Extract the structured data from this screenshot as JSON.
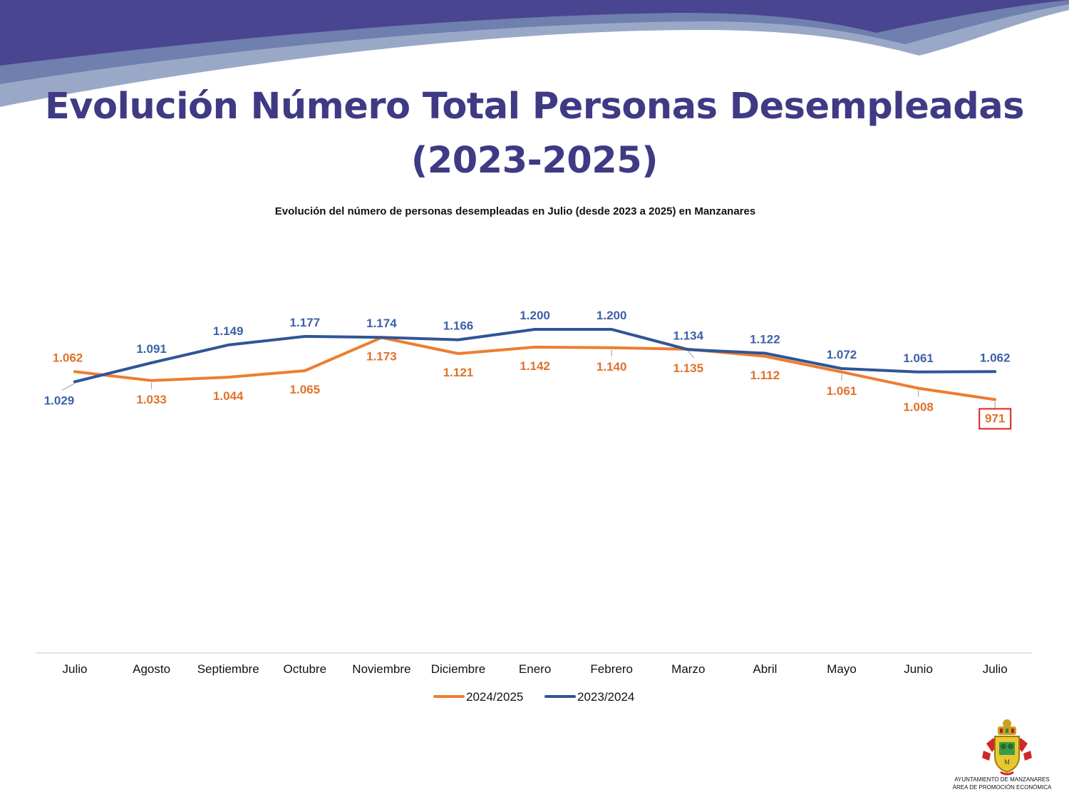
{
  "slide": {
    "title_line1": "Evolución Número Total Personas Desempleadas",
    "title_line2": "(2023-2025)",
    "footer_line1": "AYUNTAMIENTO DE MANZANARES",
    "footer_line2": "ÁREA DE PROMOCIÓN ECONÓMICA"
  },
  "colors": {
    "title": "#3f3a84",
    "series_2024": "#ed7d31",
    "series_2023": "#2f5597",
    "highlight_box": "#e02020"
  },
  "chart_data": {
    "type": "line",
    "title": "Evolución del número de personas desempleadas en Julio (desde 2023 a 2025)  en Manzanares",
    "categories": [
      "Julio",
      "Agosto",
      "Septiembre",
      "Octubre",
      "Noviembre",
      "Diciembre",
      "Enero",
      "Febrero",
      "Marzo",
      "Abril",
      "Mayo",
      "Junio",
      "Julio"
    ],
    "series": [
      {
        "name": "2024/2025",
        "values": [
          1062,
          1033,
          1044,
          1065,
          1173,
          1121,
          1142,
          1140,
          1135,
          1112,
          1061,
          1008,
          971
        ],
        "labels": [
          "1.062",
          "1.033",
          "1.044",
          "1.065",
          "1.173",
          "1.121",
          "1.142",
          "1.140",
          "1.135",
          "1.112",
          "1.061",
          "1.008",
          "971"
        ]
      },
      {
        "name": "2023/2024",
        "values": [
          1029,
          1091,
          1149,
          1177,
          1174,
          1166,
          1200,
          1200,
          1134,
          1122,
          1072,
          1061,
          1062
        ],
        "labels": [
          "1.029",
          "1.091",
          "1.149",
          "1.177",
          "1.174",
          "1.166",
          "1.200",
          "1.200",
          "1.134",
          "1.122",
          "1.072",
          "1.061",
          "1.062"
        ]
      }
    ],
    "highlight": "971",
    "legend_position": "bottom",
    "grid": false
  }
}
